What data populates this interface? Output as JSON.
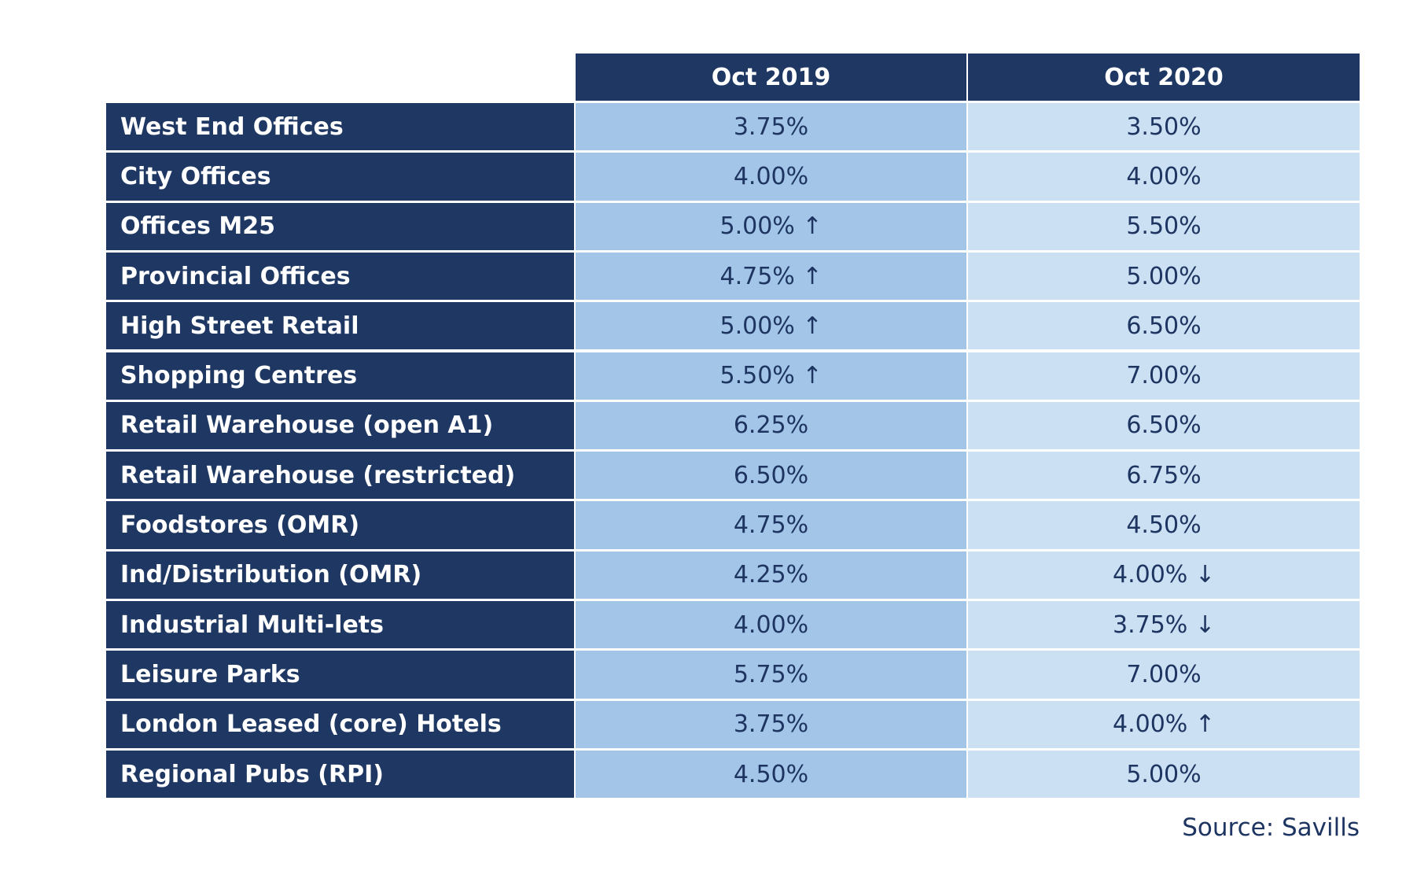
{
  "table": {
    "columns": [
      "Oct 2019",
      "Oct 2020"
    ],
    "rows": [
      [
        "West End Offices",
        "3.75%",
        "3.50%"
      ],
      [
        "City Offices",
        "4.00%",
        "4.00%"
      ],
      [
        "Offices M25",
        "5.00% ↑",
        "5.50%"
      ],
      [
        "Provincial Offices",
        "4.75% ↑",
        "5.00%"
      ],
      [
        "High Street Retail",
        "5.00% ↑",
        "6.50%"
      ],
      [
        "Shopping Centres",
        "5.50% ↑",
        "7.00%"
      ],
      [
        "Retail Warehouse (open A1)",
        "6.25%",
        "6.50%"
      ],
      [
        "Retail Warehouse (restricted)",
        "6.50%",
        "6.75%"
      ],
      [
        "Foodstores (OMR)",
        "4.75%",
        "4.50%"
      ],
      [
        "Ind/Distribution (OMR)",
        "4.25%",
        "4.00% ↓"
      ],
      [
        "Industrial Multi-lets",
        "4.00%",
        "3.75% ↓"
      ],
      [
        "Leisure Parks",
        "5.75%",
        "7.00%"
      ],
      [
        "London Leased (core) Hotels",
        "3.75%",
        "4.00% ↑"
      ],
      [
        "Regional Pubs (RPI)",
        "4.50%",
        "5.00%"
      ]
    ]
  },
  "source": "Source: Savills"
}
